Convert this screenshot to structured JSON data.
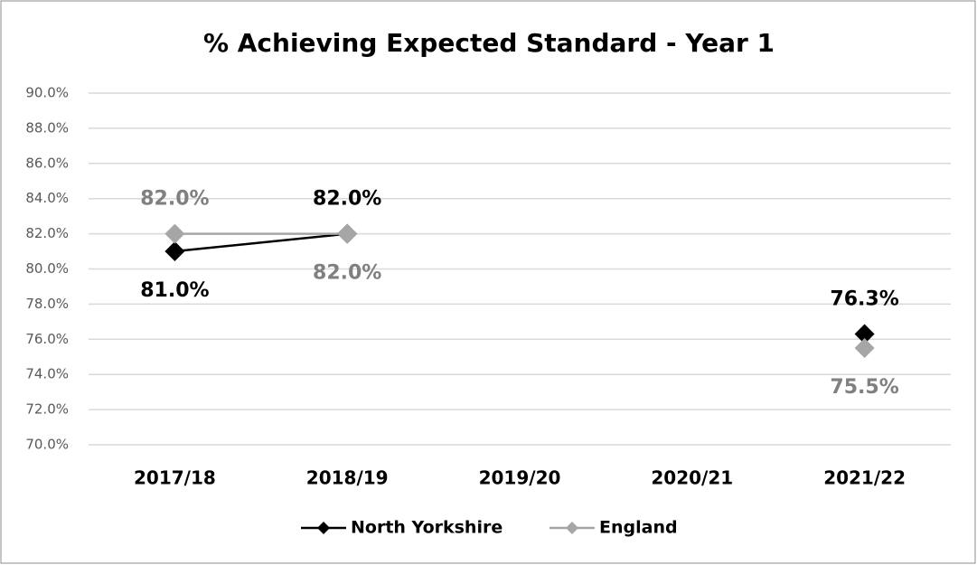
{
  "chart_data": {
    "type": "line",
    "title": "% Achieving Expected Standard - Year 1",
    "categories": [
      "2017/18",
      "2018/19",
      "2019/20",
      "2020/21",
      "2021/22"
    ],
    "series": [
      {
        "name": "North Yorkshire",
        "color": "#000000",
        "values": [
          81.0,
          82.0,
          null,
          null,
          76.3
        ],
        "value_labels": [
          "81.0%",
          "82.0%",
          null,
          null,
          "76.3%"
        ]
      },
      {
        "name": "England",
        "color": "#a6a6a6",
        "values": [
          82.0,
          82.0,
          null,
          null,
          75.5
        ],
        "value_labels": [
          "82.0%",
          "82.0%",
          null,
          null,
          "75.5%"
        ]
      }
    ],
    "ylim": [
      70,
      90
    ],
    "yticks": [
      {
        "value": 70,
        "label": "70.0%"
      },
      {
        "value": 72,
        "label": "72.0%"
      },
      {
        "value": 74,
        "label": "74.0%"
      },
      {
        "value": 76,
        "label": "76.0%"
      },
      {
        "value": 78,
        "label": "78.0%"
      },
      {
        "value": 80,
        "label": "80.0%"
      },
      {
        "value": 82,
        "label": "82.0%"
      },
      {
        "value": 84,
        "label": "84.0%"
      },
      {
        "value": 86,
        "label": "86.0%"
      },
      {
        "value": 88,
        "label": "88.0%"
      },
      {
        "value": 90,
        "label": "90.0%"
      }
    ],
    "grid": true,
    "legend": "bottom"
  }
}
